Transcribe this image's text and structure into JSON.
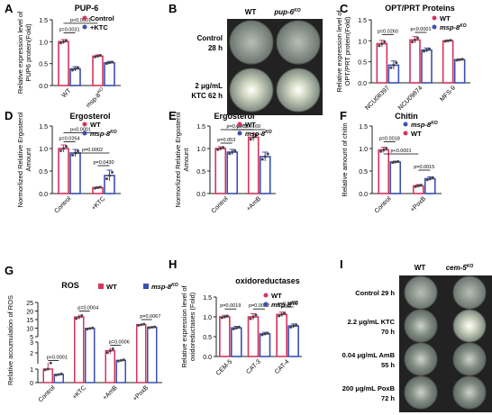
{
  "colors": {
    "red": "#d6335c",
    "blue": "#3b4fb0",
    "dot": "#444444",
    "axis": "#222222"
  },
  "panels": [
    {
      "letter": "A",
      "title": "PUP-6",
      "ylabel": [
        "Relative expression level of",
        "PUP6 protein(Fold)"
      ],
      "legend": [
        {
          "label": "Control",
          "color": "red",
          "pos": "tr"
        },
        {
          "label": "+KTC",
          "color": "blue",
          "pos": "tr"
        }
      ],
      "ylim": [
        0,
        1.5
      ],
      "yticks": [
        "0.0",
        "0.5",
        "1.0",
        "1.5"
      ],
      "ticks": [
        0,
        0.5,
        1,
        1.5
      ],
      "categories": [
        "WT",
        "msp-8KO"
      ],
      "series_colors": [
        "red",
        "blue"
      ],
      "values": [
        [
          1.0,
          0.38
        ],
        [
          0.67,
          0.52
        ]
      ],
      "err": [
        [
          0.05,
          0.05
        ],
        [
          0.03,
          0.03
        ]
      ],
      "pvals": [
        {
          "text": "p<0.0001",
          "i": 0,
          "j": 1,
          "y": 1.42
        },
        {
          "text": "p=0.0031",
          "i": 0,
          "j": 0.5,
          "y": 1.2
        }
      ]
    },
    {
      "letter": "C",
      "title": "OPT/PRT Proteins",
      "ylabel": [
        "Relative expression level of",
        "OPT/PRT protein(Fold)"
      ],
      "legend": [
        {
          "label": "WT",
          "color": "red",
          "pos": "tr"
        },
        {
          "label": "msp-8KO",
          "color": "blue",
          "pos": "tr"
        }
      ],
      "ylim": [
        0,
        1.5
      ],
      "yticks": [
        "0.0",
        "0.5",
        "1.0",
        "1.5"
      ],
      "ticks": [
        0,
        0.5,
        1,
        1.5
      ],
      "categories": [
        "NCU08397",
        "NCU09874",
        "MFS-9"
      ],
      "series_colors": [
        "red",
        "blue"
      ],
      "values": [
        [
          0.93,
          0.42
        ],
        [
          1.02,
          0.78
        ],
        [
          1.0,
          0.55
        ]
      ],
      "err": [
        [
          0.08,
          0.1
        ],
        [
          0.08,
          0.05
        ],
        [
          0.02,
          0.02
        ]
      ],
      "pvals": [
        {
          "text": "p=0.0260",
          "i": 0,
          "j": 0.5,
          "y": 1.15
        },
        {
          "text": "p<0.0001",
          "i": 1,
          "j": 1.5,
          "y": 1.2
        }
      ]
    },
    {
      "letter": "D",
      "title": "Ergosterol",
      "ylabel": [
        "Normorlized Relative Ergosterol",
        "Amount"
      ],
      "legend": [
        {
          "label": "WT",
          "color": "red",
          "pos": "tr"
        },
        {
          "label": "msp-8KO",
          "color": "blue",
          "pos": "tr"
        }
      ],
      "ylim": [
        0,
        1.5
      ],
      "yticks": [
        "0.0",
        "0.5",
        "1.0",
        "1.5"
      ],
      "ticks": [
        0,
        0.5,
        1,
        1.5
      ],
      "categories": [
        "Control",
        "+KTC"
      ],
      "series_colors": [
        "red",
        "blue"
      ],
      "values": [
        [
          1.0,
          0.9
        ],
        [
          0.13,
          0.4
        ]
      ],
      "err": [
        [
          0.08,
          0.08
        ],
        [
          0.02,
          0.12
        ]
      ],
      "pvals": [
        {
          "text": "p<0.0001",
          "i": 0,
          "j": 1,
          "y": 1.35
        },
        {
          "text": "p=0.0264",
          "i": 0,
          "j": 0.5,
          "y": 1.15
        },
        {
          "text": "p=0.0002",
          "i": 0.5,
          "j": 1.5,
          "y": 0.9
        },
        {
          "text": "p=0.0430",
          "i": 1,
          "j": 1.5,
          "y": 0.62
        }
      ]
    },
    {
      "letter": "E",
      "title": "Ergosterol",
      "ylabel": [
        "Normorlized Relative Ergosterol",
        "Amount"
      ],
      "legend": [
        {
          "label": "WT",
          "color": "red",
          "pos": "tr"
        },
        {
          "label": "msp-8KO",
          "color": "blue",
          "pos": "tr"
        }
      ],
      "ylim": [
        0,
        1.5
      ],
      "yticks": [
        "0.0",
        "0.5",
        "1.0",
        "1.5"
      ],
      "ticks": [
        0,
        0.5,
        1,
        1.5
      ],
      "categories": [
        "Control",
        "+AmB"
      ],
      "series_colors": [
        "red",
        "blue"
      ],
      "values": [
        [
          1.0,
          0.92
        ],
        [
          1.25,
          0.82
        ]
      ],
      "err": [
        [
          0.04,
          0.06
        ],
        [
          0.08,
          0.1
        ]
      ],
      "pvals": [
        {
          "text": "p=0.0075",
          "i": 0,
          "j": 1,
          "y": 1.42
        },
        {
          "text": "p=0.00169",
          "i": 0.5,
          "j": 1.5,
          "y": 1.42
        },
        {
          "text": "p=0.053",
          "i": 0,
          "j": 0.5,
          "y": 1.12
        }
      ]
    },
    {
      "letter": "F",
      "title": "Chitin",
      "ylabel": [
        "Relative amount of chitin"
      ],
      "legend": [
        {
          "label": "msp-8KO",
          "color": "blue",
          "pos": "tr"
        },
        {
          "label": "WT",
          "color": "red",
          "pos": "tr"
        }
      ],
      "ylim": [
        0,
        1.5
      ],
      "yticks": [
        "0.0",
        "0.5",
        "1.0",
        "1.5"
      ],
      "ticks": [
        0,
        0.5,
        1,
        1.5
      ],
      "categories": [
        "Control",
        "+PoxB"
      ],
      "series_colors": [
        "red",
        "blue"
      ],
      "values": [
        [
          0.97,
          0.7
        ],
        [
          0.17,
          0.33
        ]
      ],
      "err": [
        [
          0.06,
          0.02
        ],
        [
          0.03,
          0.04
        ]
      ],
      "pvals": [
        {
          "text": "p=0.0018",
          "i": 0,
          "j": 0.5,
          "y": 1.15
        },
        {
          "text": "p<0.0001",
          "i": 0,
          "j": 1,
          "y": 0.88
        },
        {
          "text": "p=0.0015",
          "i": 1,
          "j": 1.5,
          "y": 0.52
        }
      ]
    },
    {
      "letter": "H",
      "title": "oxidoreductases",
      "ylabel": [
        "Relative expression level of",
        "oxidoreductases (Fold)"
      ],
      "legend": [
        {
          "label": "WT",
          "color": "red",
          "pos": "tr"
        },
        {
          "label": "msp-8KO",
          "color": "blue",
          "pos": "tr"
        }
      ],
      "ylim": [
        0,
        1.5
      ],
      "yticks": [
        "0.0",
        "0.5",
        "1.0",
        "1.5"
      ],
      "ticks": [
        0,
        0.5,
        1,
        1.5
      ],
      "categories": [
        "CEM-5",
        "CAT-3",
        "CAT-4"
      ],
      "series_colors": [
        "red",
        "blue"
      ],
      "values": [
        [
          1.0,
          0.72
        ],
        [
          1.0,
          0.57
        ],
        [
          1.06,
          0.77
        ]
      ],
      "err": [
        [
          0.04,
          0.04
        ],
        [
          0.08,
          0.04
        ],
        [
          0.06,
          0.05
        ]
      ],
      "pvals": [
        {
          "text": "p=0.0019",
          "i": 0,
          "j": 0.5,
          "y": 1.2
        },
        {
          "text": "p=0.0022",
          "i": 1,
          "j": 1.5,
          "y": 1.2
        },
        {
          "text": "p=0.0589",
          "i": 2,
          "j": 2.5,
          "y": 1.25
        }
      ]
    }
  ],
  "ros": {
    "letter": "G",
    "title": "ROS",
    "ylabel": [
      "Relative accumulation of ROS"
    ],
    "legend": [
      {
        "label": "WT",
        "color": "red"
      },
      {
        "label": "msp-8KO",
        "color": "blue"
      }
    ],
    "categories": [
      "Control",
      "+KTC",
      "+AmB",
      "+PoxB"
    ],
    "values": [
      [
        1.0,
        0.6
      ],
      [
        16.5,
        9.8
      ],
      [
        2.2,
        1.3
      ],
      [
        12.0,
        10.5
      ]
    ],
    "err": [
      [
        0.1,
        0.08
      ],
      [
        1.5,
        0.6
      ],
      [
        0.3,
        0.1
      ],
      [
        0.6,
        0.4
      ]
    ],
    "yticks": [
      "0",
      "1",
      "2",
      "3",
      "5",
      "10",
      "15",
      "20",
      "25"
    ],
    "pvals": [
      {
        "text": "p<0.0001",
        "i": 0,
        "y": 1.3
      },
      {
        "text": "p=0.0004",
        "i": 1,
        "y": 20
      },
      {
        "text": "p=0.0006",
        "i": 2,
        "y": 2.7
      },
      {
        "text": "p=0.0067",
        "i": 3,
        "y": 15
      }
    ]
  },
  "plates_B": {
    "letter": "B",
    "cols": [
      "WT",
      "pup-6KO"
    ],
    "rows": [
      "Control",
      "28 h",
      "2 μg/mL",
      "KTC 62 h"
    ]
  },
  "plates_I": {
    "letter": "I",
    "cols": [
      "WT",
      "cem-5KO"
    ],
    "rows": [
      [
        "Control 29 h"
      ],
      [
        "2.2 μg/mL KTC",
        "70 h"
      ],
      [
        "0.04 μg/mL AmB",
        "55 h"
      ],
      [
        "200 μg/mL PoxB",
        "72 h"
      ]
    ]
  }
}
